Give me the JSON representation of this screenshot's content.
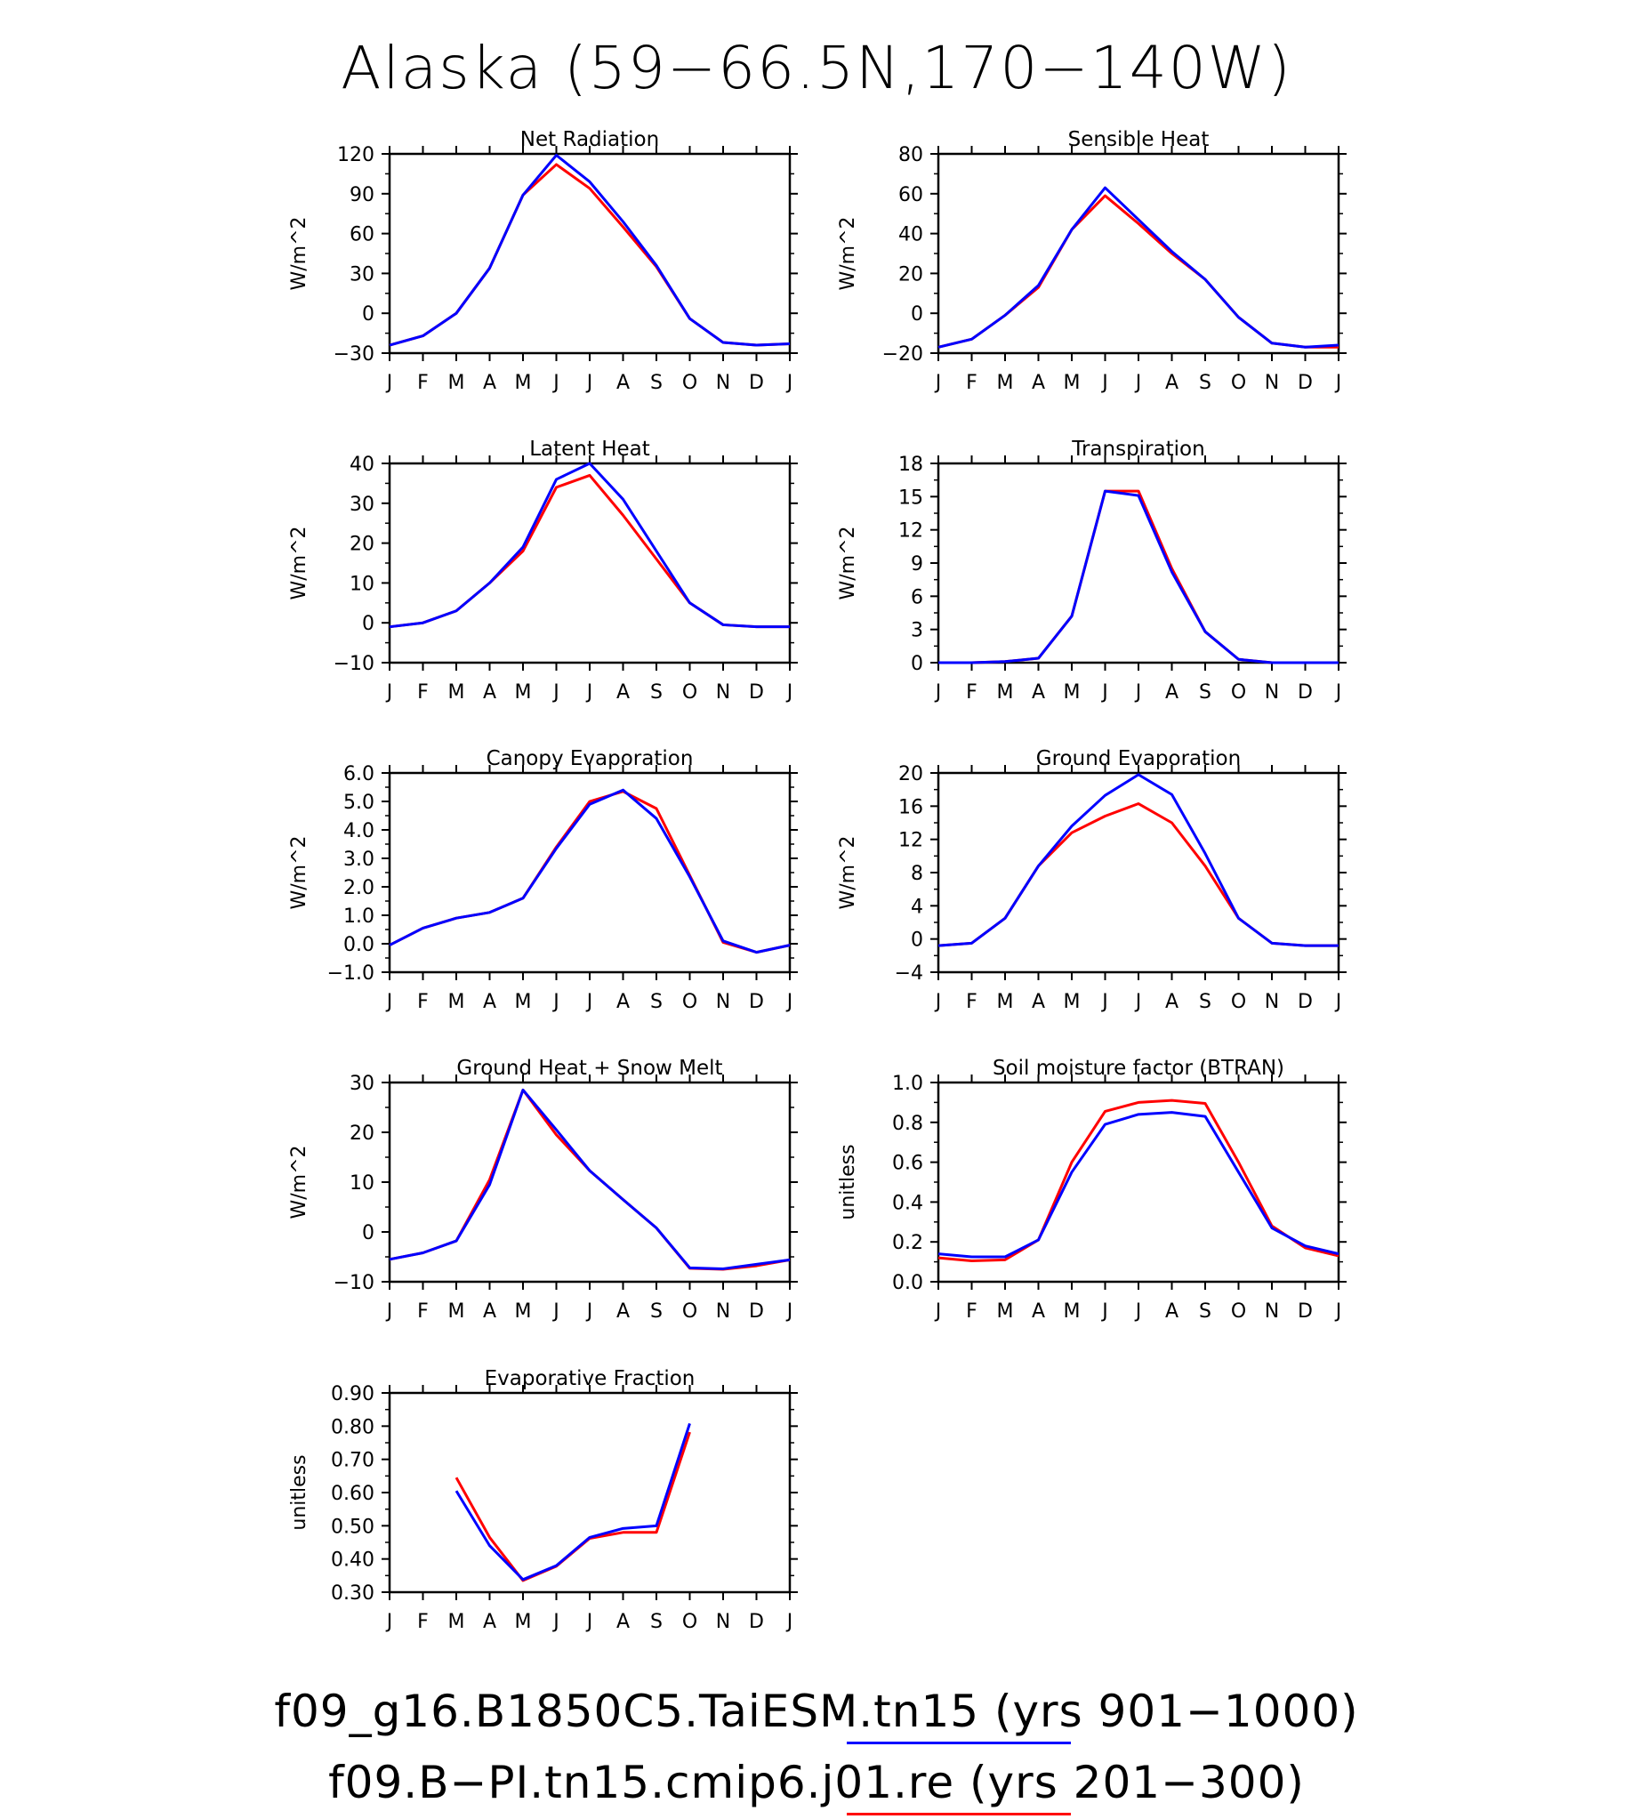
{
  "title": "Alaska (59−66.5N,170−140W)",
  "months": [
    "J",
    "F",
    "M",
    "A",
    "M",
    "J",
    "J",
    "A",
    "S",
    "O",
    "N",
    "D",
    "J"
  ],
  "legend": [
    {
      "label": "f09_g16.B1850C5.TaiESM.tn15 (yrs 901−1000)",
      "color": "#0000ff"
    },
    {
      "label": "f09.B−PI.tn15.cmip6.j01.re (yrs 201−300)",
      "color": "#ff0000"
    }
  ],
  "chart_data": [
    {
      "type": "line",
      "title": "Net Radiation",
      "ylabel": "W/m^2",
      "ylim": [
        -30,
        120
      ],
      "yticks": [
        -30,
        0,
        30,
        60,
        90,
        120
      ],
      "ytick_labels": [
        "−30",
        "0",
        "30",
        "60",
        "90",
        "120"
      ],
      "series": [
        {
          "color": "#ff0000",
          "values": [
            -24,
            -17,
            0,
            34,
            89,
            112,
            94,
            65,
            35,
            -4,
            -22,
            -24,
            -23
          ]
        },
        {
          "color": "#0000ff",
          "values": [
            -24,
            -17,
            0,
            34,
            89,
            119,
            99,
            69,
            36,
            -4,
            -22,
            -24,
            -23
          ]
        }
      ]
    },
    {
      "type": "line",
      "title": "Sensible Heat",
      "ylabel": "W/m^2",
      "ylim": [
        -20,
        80
      ],
      "yticks": [
        -20,
        0,
        20,
        40,
        60,
        80
      ],
      "ytick_labels": [
        "−20",
        "0",
        "20",
        "40",
        "60",
        "80"
      ],
      "series": [
        {
          "color": "#ff0000",
          "values": [
            -17,
            -13,
            -1,
            13,
            42,
            59,
            45,
            30,
            17,
            -2,
            -15,
            -17,
            -17
          ]
        },
        {
          "color": "#0000ff",
          "values": [
            -17,
            -13,
            -1,
            14,
            42,
            63,
            47,
            31,
            17,
            -2,
            -15,
            -17,
            -16
          ]
        }
      ]
    },
    {
      "type": "line",
      "title": "Latent Heat",
      "ylabel": "W/m^2",
      "ylim": [
        -10,
        40
      ],
      "yticks": [
        -10,
        0,
        10,
        20,
        30,
        40
      ],
      "ytick_labels": [
        "−10",
        "0",
        "10",
        "20",
        "30",
        "40"
      ],
      "series": [
        {
          "color": "#ff0000",
          "values": [
            -1,
            0,
            3,
            10,
            18,
            34,
            37,
            27,
            16,
            5,
            -0.5,
            -1,
            -1
          ]
        },
        {
          "color": "#0000ff",
          "values": [
            -1,
            0,
            3,
            10,
            19,
            36,
            40,
            31,
            18,
            5,
            -0.5,
            -1,
            -1
          ]
        }
      ]
    },
    {
      "type": "line",
      "title": "Transpiration",
      "ylabel": "W/m^2",
      "ylim": [
        0,
        18
      ],
      "yticks": [
        0,
        3,
        6,
        9,
        12,
        15,
        18
      ],
      "ytick_labels": [
        "0",
        "3",
        "6",
        "9",
        "12",
        "15",
        "18"
      ],
      "series": [
        {
          "color": "#ff0000",
          "values": [
            0,
            0,
            0.1,
            0.4,
            4.2,
            15.5,
            15.5,
            8.5,
            2.8,
            0.3,
            0,
            0,
            0
          ]
        },
        {
          "color": "#0000ff",
          "values": [
            0,
            0,
            0.1,
            0.4,
            4.2,
            15.5,
            15.1,
            8.2,
            2.8,
            0.3,
            0,
            0,
            0
          ]
        }
      ]
    },
    {
      "type": "line",
      "title": "Canopy Evaporation",
      "ylabel": "W/m^2",
      "ylim": [
        -1,
        6
      ],
      "yticks": [
        -1,
        0,
        1,
        2,
        3,
        4,
        5,
        6
      ],
      "ytick_labels": [
        "−1.0",
        "0.0",
        "1.0",
        "2.0",
        "3.0",
        "4.0",
        "5.0",
        "6.0"
      ],
      "series": [
        {
          "color": "#ff0000",
          "values": [
            -0.05,
            0.55,
            0.9,
            1.1,
            1.6,
            3.4,
            5.0,
            5.35,
            4.75,
            2.4,
            0.05,
            -0.3,
            -0.05
          ]
        },
        {
          "color": "#0000ff",
          "values": [
            -0.05,
            0.55,
            0.9,
            1.1,
            1.6,
            3.35,
            4.9,
            5.4,
            4.4,
            2.35,
            0.1,
            -0.3,
            -0.05
          ]
        }
      ]
    },
    {
      "type": "line",
      "title": "Ground Evaporation",
      "ylabel": "W/m^2",
      "ylim": [
        -4,
        20
      ],
      "yticks": [
        -4,
        0,
        4,
        8,
        12,
        16,
        20
      ],
      "ytick_labels": [
        "−4",
        "0",
        "4",
        "8",
        "12",
        "16",
        "20"
      ],
      "series": [
        {
          "color": "#ff0000",
          "values": [
            -0.8,
            -0.5,
            2.5,
            8.8,
            12.8,
            14.8,
            16.3,
            14.0,
            8.8,
            2.5,
            -0.5,
            -0.8,
            -0.8
          ]
        },
        {
          "color": "#0000ff",
          "values": [
            -0.8,
            -0.5,
            2.5,
            8.8,
            13.6,
            17.3,
            19.8,
            17.4,
            10.3,
            2.5,
            -0.5,
            -0.8,
            -0.8
          ]
        }
      ]
    },
    {
      "type": "line",
      "title": "Ground Heat + Snow Melt",
      "ylabel": "W/m^2",
      "ylim": [
        -10,
        30
      ],
      "yticks": [
        -10,
        0,
        10,
        20,
        30
      ],
      "ytick_labels": [
        "−10",
        "0",
        "10",
        "20",
        "30"
      ],
      "series": [
        {
          "color": "#ff0000",
          "values": [
            -5.5,
            -4.2,
            -1.8,
            10.5,
            28.5,
            19.5,
            12.3,
            6.5,
            0.8,
            -7.3,
            -7.5,
            -6.8,
            -5.6
          ]
        },
        {
          "color": "#0000ff",
          "values": [
            -5.5,
            -4.2,
            -1.8,
            9.5,
            28.5,
            20.5,
            12.3,
            6.5,
            0.8,
            -7.2,
            -7.4,
            -6.5,
            -5.6
          ]
        }
      ]
    },
    {
      "type": "line",
      "title": "Soil moisture factor (BTRAN)",
      "ylabel": "unitless",
      "ylim": [
        0,
        1
      ],
      "yticks": [
        0,
        0.2,
        0.4,
        0.6,
        0.8,
        1.0
      ],
      "ytick_labels": [
        "0.0",
        "0.2",
        "0.4",
        "0.6",
        "0.8",
        "1.0"
      ],
      "series": [
        {
          "color": "#ff0000",
          "values": [
            0.12,
            0.105,
            0.11,
            0.21,
            0.6,
            0.855,
            0.9,
            0.91,
            0.895,
            0.6,
            0.28,
            0.17,
            0.13
          ]
        },
        {
          "color": "#0000ff",
          "values": [
            0.14,
            0.125,
            0.125,
            0.21,
            0.55,
            0.79,
            0.84,
            0.85,
            0.83,
            0.55,
            0.27,
            0.18,
            0.14
          ]
        }
      ]
    },
    {
      "type": "line",
      "title": "Evaporative Fraction",
      "ylabel": "unitless",
      "ylim": [
        0.3,
        0.9
      ],
      "yticks": [
        0.3,
        0.4,
        0.5,
        0.6,
        0.7,
        0.8,
        0.9
      ],
      "ytick_labels": [
        "0.30",
        "0.40",
        "0.50",
        "0.60",
        "0.70",
        "0.80",
        "0.90"
      ],
      "series": [
        {
          "color": "#ff0000",
          "values": [
            null,
            null,
            0.645,
            0.465,
            0.335,
            0.378,
            0.462,
            0.48,
            0.48,
            0.782,
            null,
            null,
            null
          ]
        },
        {
          "color": "#0000ff",
          "values": [
            null,
            null,
            0.605,
            0.44,
            0.338,
            0.38,
            0.465,
            0.492,
            0.5,
            0.808,
            null,
            null,
            null
          ]
        }
      ]
    }
  ]
}
